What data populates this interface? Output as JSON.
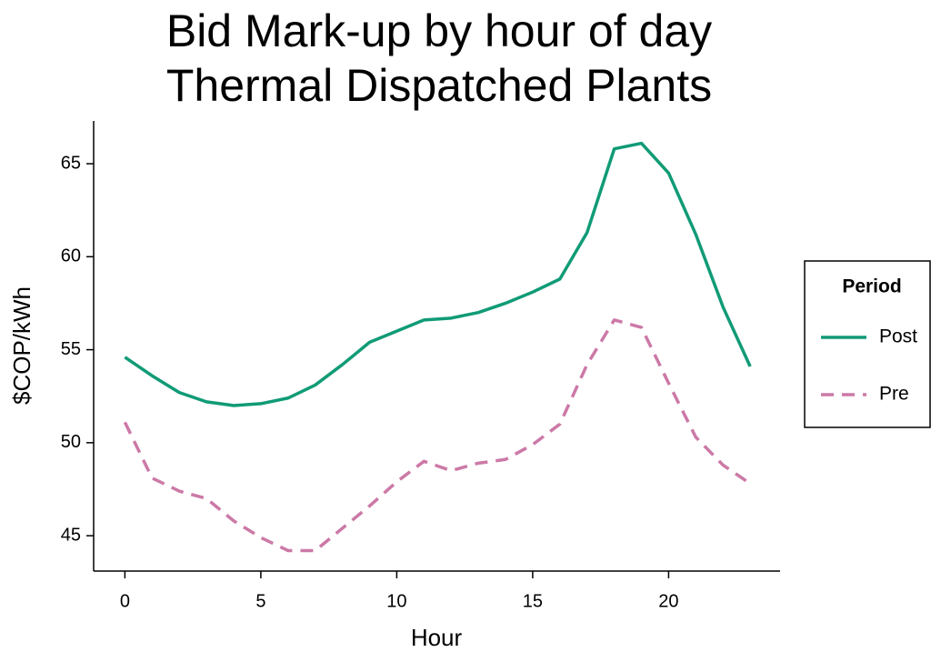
{
  "chart_data": {
    "type": "line",
    "title": [
      "Bid Mark-up by hour of day",
      "Thermal Dispatched Plants"
    ],
    "x_label": "Hour",
    "y_label": "$COP/kWh",
    "x": [
      0,
      1,
      2,
      3,
      4,
      5,
      6,
      7,
      8,
      9,
      10,
      11,
      12,
      13,
      14,
      15,
      16,
      17,
      18,
      19,
      20,
      21,
      22,
      23
    ],
    "series": [
      {
        "name": "Post",
        "color": "#109b76",
        "linestyle": "solid",
        "values": [
          54.6,
          53.6,
          52.7,
          52.2,
          52.0,
          52.1,
          52.4,
          53.1,
          54.2,
          55.4,
          56.0,
          56.6,
          56.7,
          57.0,
          57.5,
          58.1,
          58.8,
          61.3,
          65.8,
          66.1,
          64.5,
          61.2,
          57.3,
          54.1
        ]
      },
      {
        "name": "Pre",
        "color": "#cc79a7",
        "linestyle": "dashed",
        "values": [
          51.1,
          48.1,
          47.4,
          47.0,
          45.8,
          44.9,
          44.2,
          44.2,
          45.4,
          46.6,
          47.9,
          49.0,
          48.5,
          48.9,
          49.1,
          49.9,
          51.0,
          54.2,
          56.6,
          56.2,
          53.2,
          50.3,
          48.8,
          47.8
        ]
      }
    ],
    "xlim": [
      -1.15,
      24.1
    ],
    "xticks": [
      0,
      5,
      10,
      15,
      20
    ],
    "ylim": [
      43.1,
      67.3
    ],
    "yticks": [
      45,
      50,
      55,
      60,
      65
    ],
    "grid": false,
    "legend": {
      "title": "Period",
      "position": "right"
    }
  }
}
